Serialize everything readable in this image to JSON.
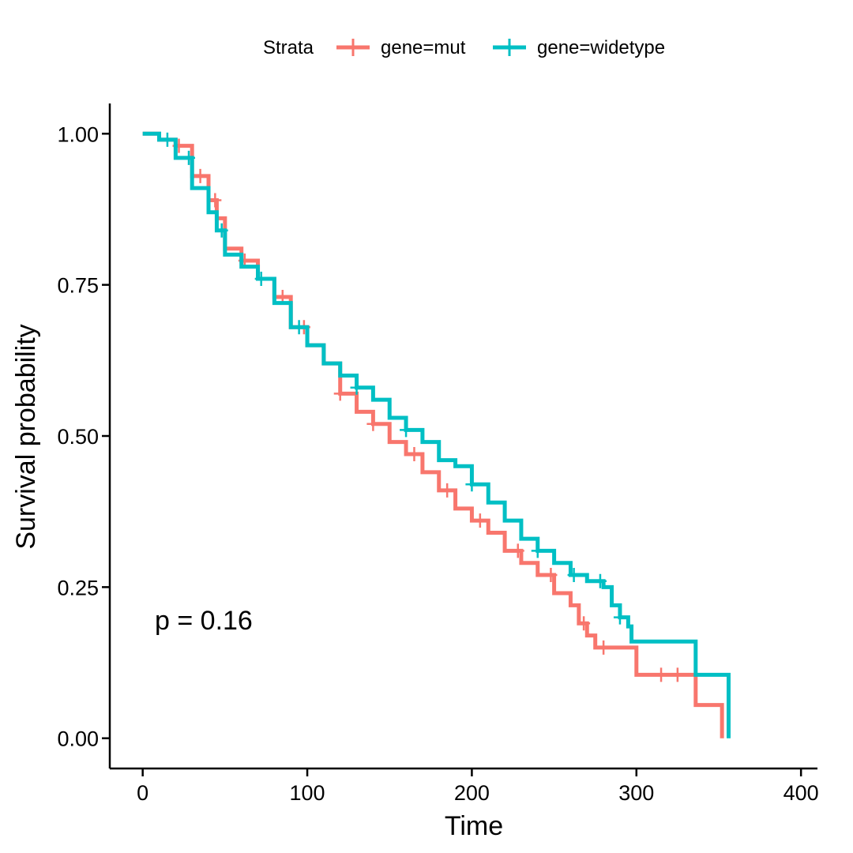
{
  "chart_data": {
    "type": "line",
    "xlabel": "Time",
    "ylabel": "Survival probability",
    "xlim": [
      -20,
      410
    ],
    "ylim": [
      -0.05,
      1.05
    ],
    "x_ticks": [
      0,
      100,
      200,
      300,
      400
    ],
    "x_tick_labels": [
      "0",
      "100",
      "200",
      "300",
      "400"
    ],
    "y_ticks": [
      0,
      0.25,
      0.5,
      0.75,
      1.0
    ],
    "y_tick_labels": [
      "0.00",
      "0.25",
      "0.50",
      "0.75",
      "1.00"
    ],
    "grid": false,
    "legend_position": "top",
    "legend": {
      "title": "Strata",
      "entries": [
        "gene=mut",
        "gene=widetype"
      ]
    },
    "annotation": "p = 0.16",
    "series": [
      {
        "name": "gene=mut",
        "color": "#F8766D",
        "points": [
          [
            0,
            1.0
          ],
          [
            10,
            0.99
          ],
          [
            20,
            0.98
          ],
          [
            30,
            0.93
          ],
          [
            40,
            0.89
          ],
          [
            45,
            0.86
          ],
          [
            50,
            0.81
          ],
          [
            60,
            0.79
          ],
          [
            70,
            0.76
          ],
          [
            80,
            0.73
          ],
          [
            90,
            0.68
          ],
          [
            100,
            0.65
          ],
          [
            110,
            0.62
          ],
          [
            120,
            0.57
          ],
          [
            130,
            0.54
          ],
          [
            140,
            0.52
          ],
          [
            150,
            0.49
          ],
          [
            160,
            0.47
          ],
          [
            170,
            0.44
          ],
          [
            180,
            0.41
          ],
          [
            190,
            0.38
          ],
          [
            200,
            0.36
          ],
          [
            210,
            0.34
          ],
          [
            220,
            0.31
          ],
          [
            230,
            0.29
          ],
          [
            240,
            0.27
          ],
          [
            250,
            0.24
          ],
          [
            260,
            0.22
          ],
          [
            265,
            0.19
          ],
          [
            270,
            0.17
          ],
          [
            275,
            0.15
          ],
          [
            298,
            0.15
          ],
          [
            300,
            0.105
          ],
          [
            335,
            0.105
          ],
          [
            336,
            0.055
          ],
          [
            351,
            0.055
          ],
          [
            352,
            0.0
          ]
        ],
        "censor_x": [
          22,
          35,
          44,
          62,
          85,
          98,
          120,
          140,
          165,
          185,
          205,
          228,
          248,
          268,
          280,
          315,
          325
        ]
      },
      {
        "name": "gene=widetype",
        "color": "#00BFC4",
        "points": [
          [
            0,
            1.0
          ],
          [
            10,
            0.99
          ],
          [
            20,
            0.96
          ],
          [
            30,
            0.91
          ],
          [
            40,
            0.87
          ],
          [
            45,
            0.84
          ],
          [
            50,
            0.8
          ],
          [
            60,
            0.78
          ],
          [
            70,
            0.76
          ],
          [
            80,
            0.72
          ],
          [
            90,
            0.68
          ],
          [
            100,
            0.65
          ],
          [
            110,
            0.62
          ],
          [
            120,
            0.6
          ],
          [
            130,
            0.58
          ],
          [
            140,
            0.56
          ],
          [
            150,
            0.53
          ],
          [
            160,
            0.51
          ],
          [
            170,
            0.49
          ],
          [
            180,
            0.46
          ],
          [
            190,
            0.45
          ],
          [
            200,
            0.42
          ],
          [
            210,
            0.39
          ],
          [
            220,
            0.36
          ],
          [
            230,
            0.33
          ],
          [
            240,
            0.31
          ],
          [
            250,
            0.29
          ],
          [
            260,
            0.27
          ],
          [
            270,
            0.26
          ],
          [
            280,
            0.25
          ],
          [
            285,
            0.22
          ],
          [
            290,
            0.2
          ],
          [
            295,
            0.185
          ],
          [
            297,
            0.16
          ],
          [
            335,
            0.16
          ],
          [
            336,
            0.105
          ],
          [
            355,
            0.105
          ],
          [
            356,
            0.0
          ]
        ],
        "censor_x": [
          15,
          28,
          48,
          72,
          95,
          130,
          160,
          200,
          240,
          262,
          278,
          290
        ]
      }
    ]
  }
}
